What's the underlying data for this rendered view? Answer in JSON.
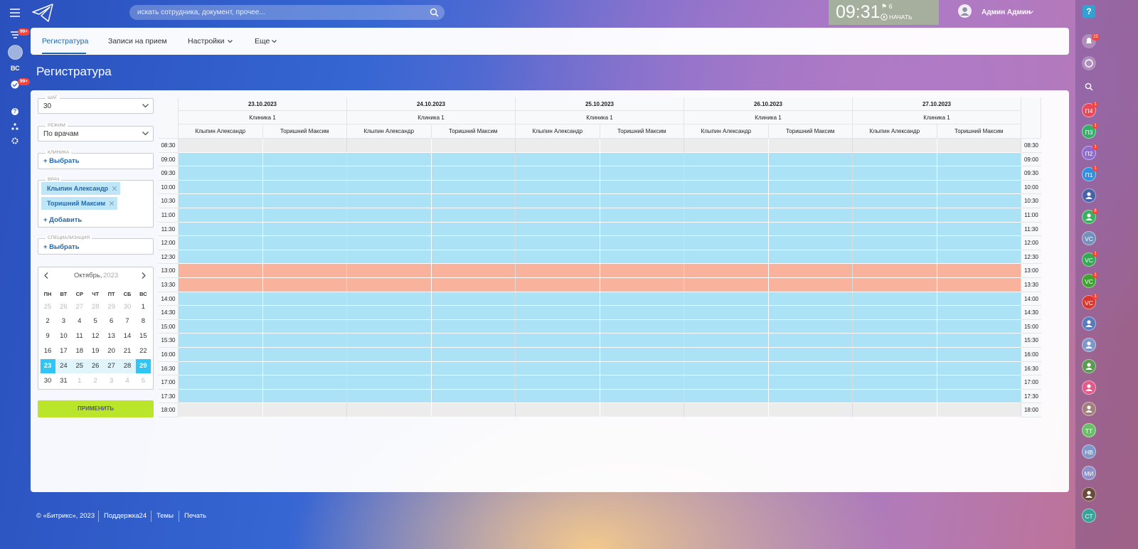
{
  "header": {
    "search_placeholder": "искать сотрудника, документ, прочее...",
    "clock": "09:31",
    "flag_count": "⚑ 6",
    "start": "НАЧАТЬ",
    "user": "Админ Админ"
  },
  "left_nav": {
    "badge_top": "99+",
    "user_initials": "ВС",
    "badge_bottom": "99+",
    "help": "?"
  },
  "tabs": [
    "Регистратура",
    "Записи на прием",
    "Настройки",
    "Еще"
  ],
  "page_title": "Регистратура",
  "filters": {
    "step": {
      "label": "ШАГ",
      "value": "30"
    },
    "mode": {
      "label": "РЕЖИМ",
      "value": "По врачам"
    },
    "clinic": {
      "label": "КЛИНИКА",
      "action": "+ Выбрать"
    },
    "doctor": {
      "label": "ВРАЧ",
      "chips": [
        "Клыпин Александр",
        "Торишний Максим"
      ],
      "action": "+ Добавить"
    },
    "specialization": {
      "label": "СПЕЦИАЛИЗАЦИЯ",
      "action": "+ Выбрать"
    }
  },
  "calendar": {
    "month": "Октябрь,",
    "year": "2023",
    "weekdays": [
      "ПН",
      "ВТ",
      "СР",
      "ЧТ",
      "ПТ",
      "СБ",
      "ВС"
    ],
    "weeks": [
      [
        {
          "day": "25",
          "muted": true
        },
        {
          "day": "26",
          "muted": true
        },
        {
          "day": "27",
          "muted": true
        },
        {
          "day": "28",
          "muted": true
        },
        {
          "day": "29",
          "muted": true
        },
        {
          "day": "30",
          "muted": true
        },
        {
          "day": "1"
        }
      ],
      [
        {
          "day": "2"
        },
        {
          "day": "3"
        },
        {
          "day": "4"
        },
        {
          "day": "5"
        },
        {
          "day": "6"
        },
        {
          "day": "7"
        },
        {
          "day": "8"
        }
      ],
      [
        {
          "day": "9"
        },
        {
          "day": "10"
        },
        {
          "day": "11"
        },
        {
          "day": "12"
        },
        {
          "day": "13"
        },
        {
          "day": "14"
        },
        {
          "day": "15"
        }
      ],
      [
        {
          "day": "16"
        },
        {
          "day": "17"
        },
        {
          "day": "18"
        },
        {
          "day": "19"
        },
        {
          "day": "20"
        },
        {
          "day": "21"
        },
        {
          "day": "22"
        }
      ],
      [
        {
          "day": "23",
          "selected": true
        },
        {
          "day": "24"
        },
        {
          "day": "25"
        },
        {
          "day": "26"
        },
        {
          "day": "27"
        },
        {
          "day": "28"
        },
        {
          "day": "29",
          "selected": true
        }
      ],
      [
        {
          "day": "30"
        },
        {
          "day": "31"
        },
        {
          "day": "1",
          "muted": true
        },
        {
          "day": "2",
          "muted": true
        },
        {
          "day": "3",
          "muted": true
        },
        {
          "day": "4",
          "muted": true
        },
        {
          "day": "5",
          "muted": true
        }
      ]
    ]
  },
  "apply": "ПРИМЕНИТЬ",
  "schedule": {
    "days": [
      {
        "date": "23.10.2023",
        "clinic": "Клиника 1",
        "doctors": [
          "Клыпин Александр",
          "Торишний Максим"
        ]
      },
      {
        "date": "24.10.2023",
        "clinic": "Клиника 1",
        "doctors": [
          "Клыпин Александр",
          "Торишний Максим"
        ]
      },
      {
        "date": "25.10.2023",
        "clinic": "Клиника 1",
        "doctors": [
          "Клыпин Александр",
          "Торишний Максим"
        ]
      },
      {
        "date": "26.10.2023",
        "clinic": "Клиника 1",
        "doctors": [
          "Клыпин Александр",
          "Торишний Максим"
        ]
      },
      {
        "date": "27.10.2023",
        "clinic": "Клиника 1",
        "doctors": [
          "Клыпин Александр",
          "Торишний Максим"
        ]
      }
    ],
    "times": [
      "08:30",
      "09:00",
      "09:30",
      "10:00",
      "10:30",
      "11:00",
      "11:30",
      "12:00",
      "12:30",
      "13:00",
      "13:30",
      "14:00",
      "14:30",
      "15:00",
      "15:30",
      "16:00",
      "16:30",
      "17:00",
      "17:30",
      "18:00"
    ],
    "row_state": [
      "off",
      "free",
      "free",
      "free",
      "free",
      "free",
      "free",
      "free",
      "free",
      "break",
      "break",
      "free",
      "free",
      "free",
      "free",
      "free",
      "free",
      "free",
      "free",
      "off"
    ],
    "state_colors": {
      "off": "#ececec",
      "free": "#abe2f5",
      "break": "#f9b39c"
    }
  },
  "footer": [
    "© «Битрикс», 2023",
    "Поддержка24",
    "Темы",
    "Печать"
  ],
  "right_nav": {
    "help": "?",
    "notification_badge": "25",
    "items": [
      {
        "label": "П4",
        "color": "#e8485a",
        "badge": "1"
      },
      {
        "label": "П3",
        "color": "#35b06a",
        "badge": "1"
      },
      {
        "label": "П2",
        "color": "#8e6bd1",
        "badge": "1"
      },
      {
        "label": "П1",
        "color": "#2f8fe0",
        "badge": "1"
      },
      {
        "color": "#4a62a8"
      },
      {
        "color": "#3bb15f",
        "badge": "8"
      },
      {
        "label": "VC",
        "color": "#7391bb"
      },
      {
        "label": "VC",
        "color": "#34a853",
        "badge": "1"
      },
      {
        "label": "VC",
        "color": "#3ea330",
        "badge": "1"
      },
      {
        "label": "VC",
        "color": "#d8382f",
        "badge": "1"
      },
      {
        "color": "#5a7bbb"
      },
      {
        "color": "#7f97c9"
      },
      {
        "color": "#5a9a52"
      },
      {
        "color": "#e05c8a"
      },
      {
        "color": "#a3807b"
      },
      {
        "label": "TT",
        "color": "#6cbf6a"
      },
      {
        "label": "НВ",
        "color": "#7f97c9"
      },
      {
        "label": "МИ",
        "color": "#8d90c9"
      },
      {
        "color": "#6b4a3a"
      },
      {
        "label": "СТ",
        "color": "#37a39a"
      }
    ]
  }
}
